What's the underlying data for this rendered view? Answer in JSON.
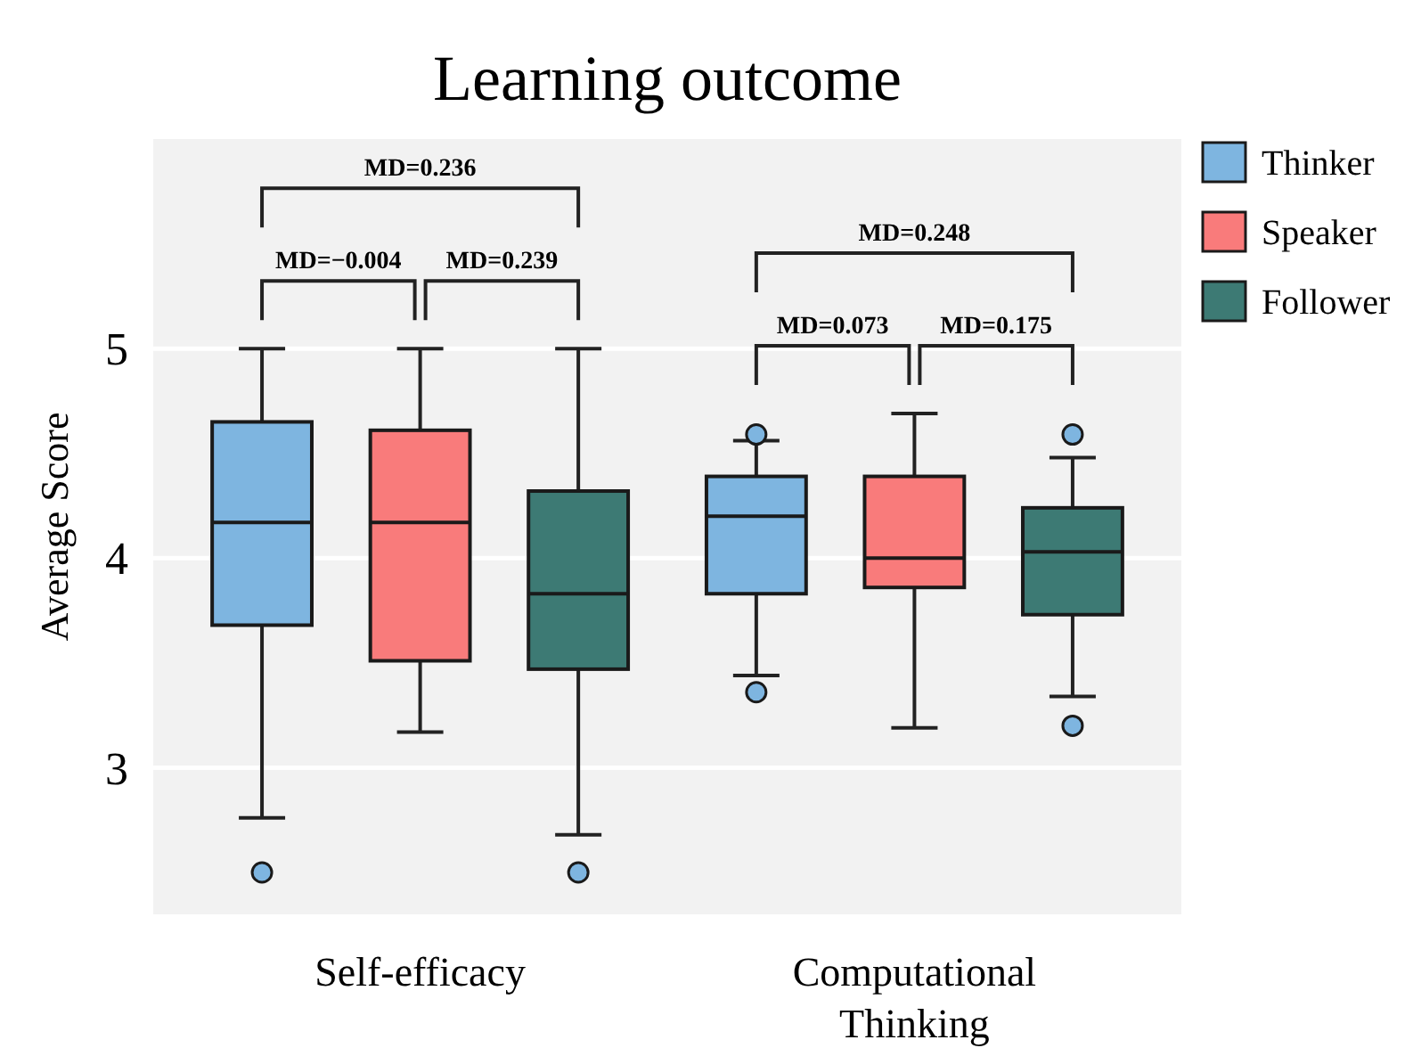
{
  "chart_data": {
    "type": "box",
    "title": "Learning outcome",
    "ylabel": "Average Score",
    "categories": [
      "Self-efficacy",
      "Computational Thinking"
    ],
    "ylim": [
      2.3,
      6.0
    ],
    "yticks": [
      3,
      4,
      5
    ],
    "grid": "y",
    "legend": "top right",
    "series": [
      {
        "name": "Thinker",
        "color": "#7eb5e0",
        "boxes": [
          {
            "low": 2.76,
            "q1": 3.68,
            "median": 4.17,
            "q3": 4.65,
            "high": 5,
            "outliers": [
              2.5
            ]
          },
          {
            "low": 3.44,
            "q1": 3.83,
            "median": 4.2,
            "q3": 4.39,
            "high": 4.56,
            "outliers": [
              4.59,
              3.36
            ]
          }
        ]
      },
      {
        "name": "Speaker",
        "color": "#f97b7b",
        "boxes": [
          {
            "low": 3.17,
            "q1": 3.51,
            "median": 4.17,
            "q3": 4.61,
            "high": 5
          },
          {
            "low": 3.19,
            "q1": 3.86,
            "median": 4.0,
            "q3": 4.39,
            "high": 4.69
          }
        ]
      },
      {
        "name": "Follower",
        "color": "#3d7a74",
        "boxes": [
          {
            "low": 2.68,
            "q1": 3.47,
            "median": 3.83,
            "q3": 4.32,
            "high": 5,
            "outliers": [
              2.5
            ]
          },
          {
            "low": 3.34,
            "q1": 3.73,
            "median": 4.03,
            "q3": 4.24,
            "high": 4.48,
            "outliers": [
              4.59,
              3.2
            ]
          }
        ]
      }
    ],
    "annotations": [
      "MD=−0.004",
      "MD=0.239",
      "MD=0.236",
      "MD=0.073",
      "MD=0.175",
      "MD=0.248"
    ]
  }
}
